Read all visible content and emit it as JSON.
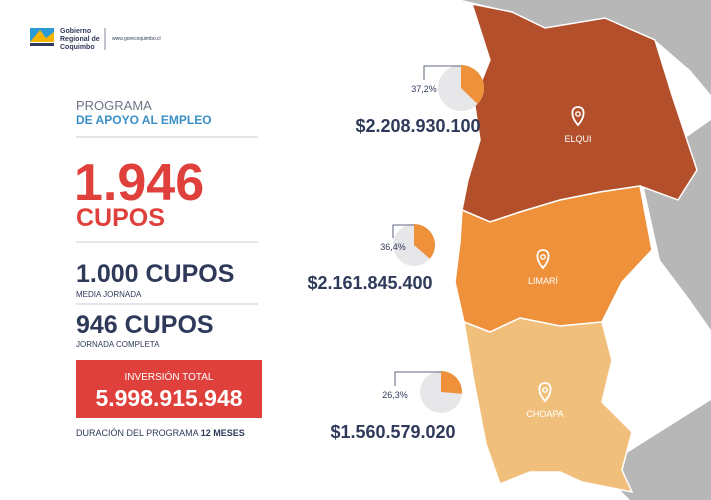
{
  "header": {
    "org_lines": [
      "Gobierno",
      "Regional de",
      "Coquimbo"
    ],
    "website": "www.gorecoquimbo.cl"
  },
  "program": {
    "line1": "PROGRAMA",
    "line2": "DE APOYO AL EMPLEO"
  },
  "total": {
    "number": "1.946",
    "unit": "CUPOS"
  },
  "breakdown": [
    {
      "amount": "1.000 CUPOS",
      "label": "MEDIA JORNADA"
    },
    {
      "amount": "946 CUPOS",
      "label": "JORNADA COMPLETA"
    }
  ],
  "investment": {
    "label": "INVERSIÓN TOTAL",
    "amount": "5.998.915.948"
  },
  "duration": {
    "label": "DURACIÓN DEL PROGRAMA",
    "value": "12 MESES"
  },
  "regions": [
    {
      "name": "ELQUI",
      "amount": "$2.208.930.100",
      "share": {
        "value": 37.2,
        "label": "37,2%"
      }
    },
    {
      "name": "LIMARÍ",
      "amount": "$2.161.845.400",
      "share": {
        "value": 36.4,
        "label": "36,4%"
      }
    },
    {
      "name": "CHOAPA",
      "amount": "$1.560.579.020",
      "share": {
        "value": 26.3,
        "label": "26,3%"
      }
    }
  ]
}
